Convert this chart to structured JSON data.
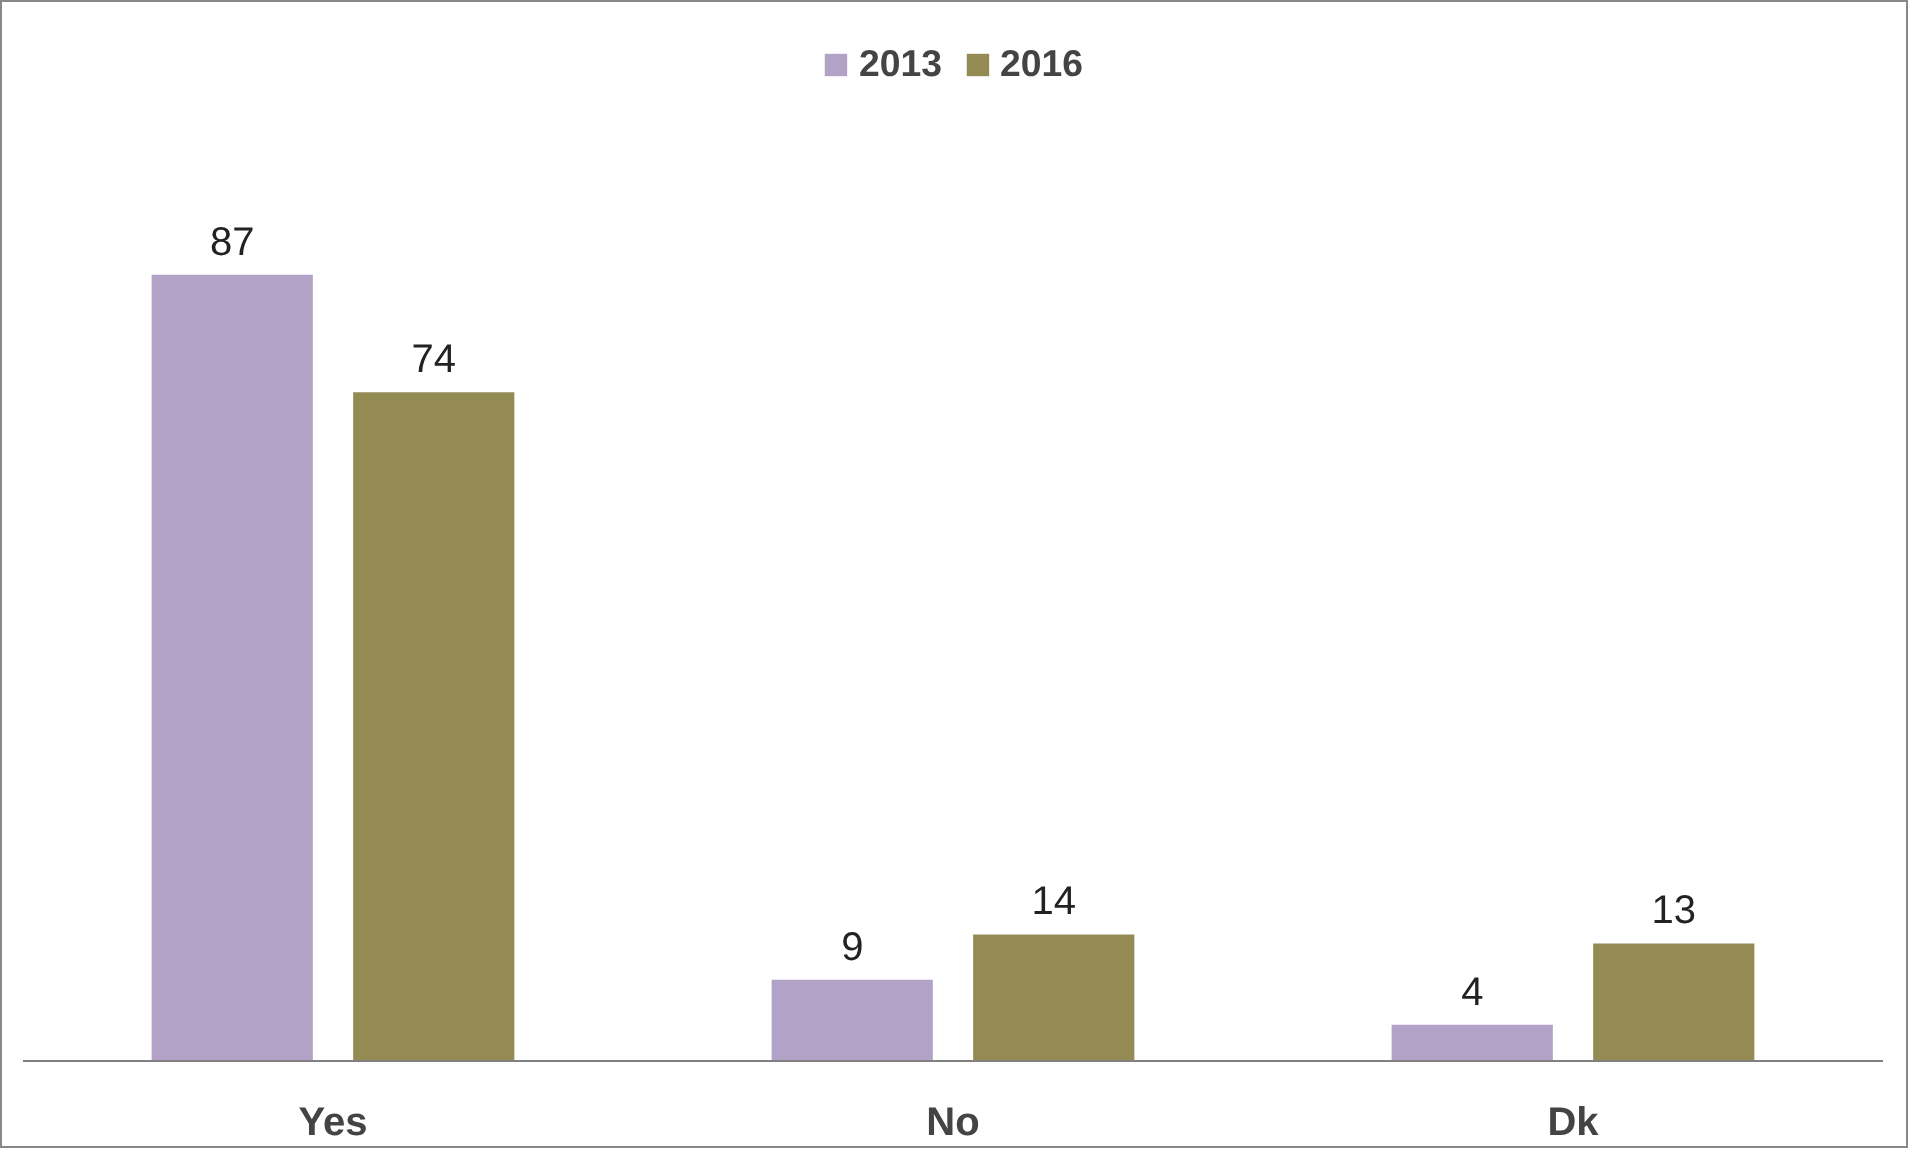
{
  "chart_data": {
    "type": "bar",
    "categories": [
      "Yes",
      "No",
      "Dk"
    ],
    "series": [
      {
        "name": "2013",
        "color": "#b3a2c7",
        "values": [
          87,
          9,
          4
        ]
      },
      {
        "name": "2016",
        "color": "#948a54",
        "values": [
          74,
          14,
          13
        ]
      }
    ],
    "data_labels": true,
    "legend": "top",
    "grid": false
  }
}
